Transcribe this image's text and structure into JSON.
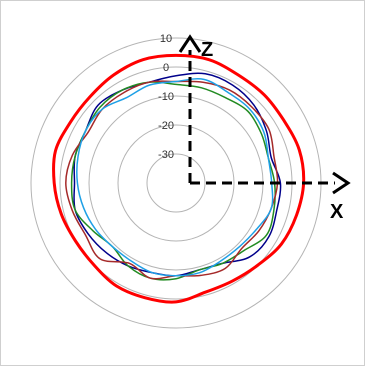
{
  "chart_data": {
    "type": "line",
    "subtype": "polar",
    "title": "",
    "radial_axis": {
      "range": [
        -40,
        10
      ],
      "ticks": [
        10,
        0,
        -10,
        -20,
        -30
      ],
      "tick_labels": [
        "10",
        "0",
        "-10",
        "-20",
        "-30"
      ],
      "grid": true
    },
    "axis_labels": {
      "z": "Z",
      "x": "X"
    },
    "angles_deg": [
      0,
      15,
      30,
      45,
      60,
      75,
      90,
      105,
      120,
      135,
      150,
      165,
      180,
      195,
      210,
      225,
      240,
      255,
      270,
      285,
      300,
      315,
      330,
      345
    ],
    "series": [
      {
        "color": "#ff0000",
        "line_width": 3,
        "values": [
          4,
          4,
          3,
          3,
          3,
          4,
          4,
          3,
          2,
          0,
          -1,
          -1,
          1,
          1,
          1,
          0,
          0,
          1,
          2,
          3,
          2,
          2,
          3,
          4
        ]
      },
      {
        "color": "#00008b",
        "line_width": 1.5,
        "values": [
          -3,
          -1,
          -1,
          -2,
          -4,
          -6,
          -4,
          -4,
          -3,
          -4,
          -8,
          -9,
          -8,
          -8,
          -7,
          -6,
          -5,
          -4,
          -5,
          -4,
          -4,
          -2,
          -3,
          -4
        ]
      },
      {
        "color": "#228b22",
        "line_width": 1.5,
        "values": [
          -6,
          -6,
          -6,
          -5,
          -6,
          -7,
          -6,
          -5,
          -4,
          -7,
          -8,
          -9,
          -7,
          -6,
          -7,
          -9,
          -7,
          -4,
          -4,
          -4,
          -4,
          -3,
          -3,
          -4
        ]
      },
      {
        "color": "#a52a2a",
        "line_width": 1.5,
        "values": [
          -5,
          -4,
          -3,
          -3,
          -3,
          -5,
          -5,
          -6,
          -7,
          -8,
          -6,
          -7,
          -8,
          -6,
          -8,
          -3,
          -4,
          -3,
          -2,
          -3,
          -5,
          -4,
          -4,
          -4
        ]
      },
      {
        "color": "#1ea0e6",
        "line_width": 1.5,
        "values": [
          -5,
          -3,
          -4,
          -4,
          -5,
          -7,
          -7,
          -6,
          -8,
          -9,
          -9,
          -8,
          -8,
          -8,
          -9,
          -9,
          -8,
          -7,
          -6,
          -5,
          -4,
          -4,
          -6,
          -5
        ]
      }
    ]
  }
}
